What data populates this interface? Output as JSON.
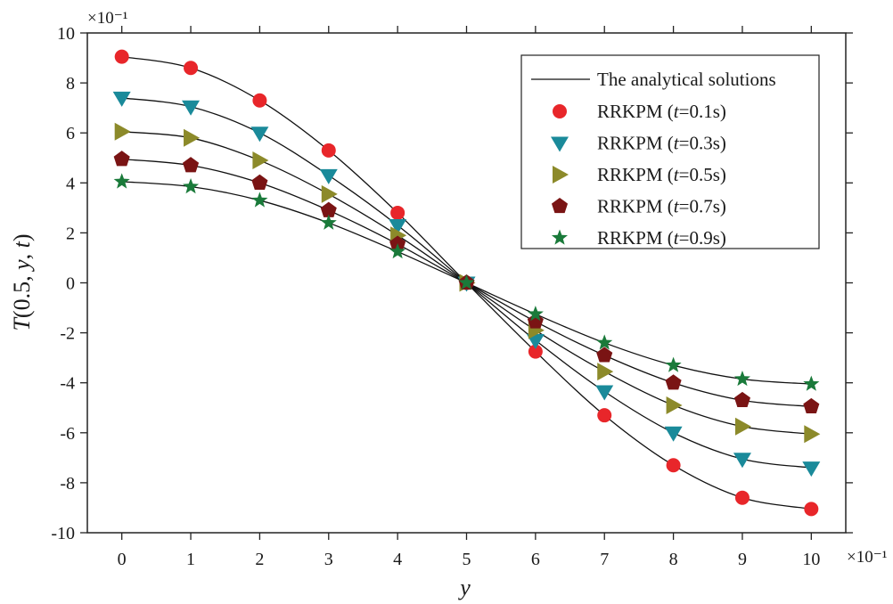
{
  "chart_data": {
    "type": "line",
    "title": "",
    "xlabel": "y",
    "ylabel": "T(0.5, y, t)",
    "x_scale_note": "×10⁻¹",
    "y_scale_note": "×10⁻¹",
    "xlim": [
      -0.5,
      10.5
    ],
    "ylim": [
      -10,
      10
    ],
    "x_ticks": [
      "0",
      "1",
      "2",
      "3",
      "4",
      "5",
      "6",
      "7",
      "8",
      "9",
      "10"
    ],
    "y_ticks": [
      "10",
      "8",
      "6",
      "4",
      "2",
      "0",
      "-2",
      "-4",
      "-6",
      "-8",
      "-10"
    ],
    "x": [
      0,
      1,
      2,
      3,
      4,
      5,
      6,
      7,
      8,
      9,
      10
    ],
    "grid": false,
    "legend_position": "top-right",
    "analytical_label": "The analytical solutions",
    "series": [
      {
        "name": "RRKPM (t=0.1s)",
        "legend_prefix": "RRKPM (",
        "legend_t": "t",
        "legend_suffix": "=0.1s)",
        "marker": "circle",
        "color": "#e8262a",
        "values": [
          9.05,
          8.6,
          7.3,
          5.3,
          2.8,
          0,
          -2.75,
          -5.3,
          -7.3,
          -8.6,
          -9.05
        ]
      },
      {
        "name": "RRKPM (t=0.3s)",
        "legend_prefix": "RRKPM (",
        "legend_t": "t",
        "legend_suffix": "=0.3s)",
        "marker": "triangle-down",
        "color": "#1a8a9a",
        "values": [
          7.4,
          7.05,
          6.0,
          4.3,
          2.3,
          0,
          -2.3,
          -4.35,
          -6.0,
          -7.05,
          -7.4
        ]
      },
      {
        "name": "RRKPM (t=0.5s)",
        "legend_prefix": "RRKPM (",
        "legend_t": "t",
        "legend_suffix": "=0.5s)",
        "marker": "triangle-right",
        "color": "#8c8a2a",
        "values": [
          6.05,
          5.8,
          4.9,
          3.55,
          1.9,
          0,
          -1.9,
          -3.55,
          -4.9,
          -5.75,
          -6.05
        ]
      },
      {
        "name": "RRKPM (t=0.7s)",
        "legend_prefix": "RRKPM (",
        "legend_t": "t",
        "legend_suffix": "=0.7s)",
        "marker": "pentagon",
        "color": "#7a1414",
        "values": [
          4.95,
          4.7,
          4.0,
          2.9,
          1.55,
          0,
          -1.55,
          -2.9,
          -4.0,
          -4.7,
          -4.95
        ]
      },
      {
        "name": "RRKPM (t=0.9s)",
        "legend_prefix": "RRKPM (",
        "legend_t": "t",
        "legend_suffix": "=0.9s)",
        "marker": "star",
        "color": "#1a7a3a",
        "values": [
          4.05,
          3.85,
          3.3,
          2.4,
          1.25,
          0,
          -1.25,
          -2.4,
          -3.3,
          -3.85,
          -4.05
        ]
      }
    ]
  }
}
